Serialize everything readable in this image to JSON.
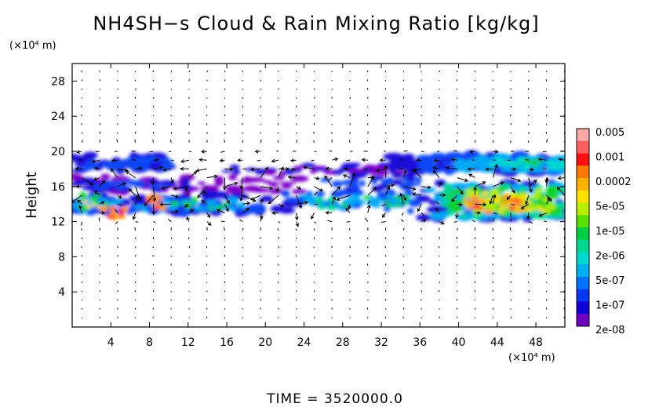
{
  "chart_data": {
    "type": "heatmap",
    "title": "NH4SH−s Cloud & Rain Mixing Ratio [kg/kg]",
    "xlabel": "",
    "ylabel": "Height",
    "x_unit": "(×10⁴ m)",
    "y_unit": "(×10⁴ m)",
    "xlim": [
      0,
      51
    ],
    "ylim": [
      0,
      30
    ],
    "x_ticks": [
      4,
      8,
      12,
      16,
      20,
      24,
      28,
      32,
      36,
      40,
      44,
      48
    ],
    "y_ticks": [
      4,
      8,
      12,
      16,
      20,
      24,
      28
    ],
    "x_tick_labels": [
      "4",
      "8",
      "12",
      "16",
      "20",
      "24",
      "28",
      "32",
      "36",
      "40",
      "44",
      "48"
    ],
    "y_tick_labels": [
      "4",
      "8",
      "12",
      "16",
      "20",
      "24",
      "28"
    ],
    "colorbar": {
      "labels": [
        "0.005",
        "0.001",
        "0.0002",
        "5e-05",
        "1e-05",
        "2e-06",
        "5e-07",
        "1e-07",
        "2e-08"
      ],
      "colors": [
        "#ffa8a8",
        "#ff6060",
        "#ff1010",
        "#ff7a00",
        "#ffb000",
        "#ffe000",
        "#b8f000",
        "#58e000",
        "#00d040",
        "#00d890",
        "#00d8d0",
        "#00b0f0",
        "#0070ff",
        "#0038f0",
        "#1000d8",
        "#7000c0"
      ]
    },
    "cloud_bands": [
      {
        "name": "upper band",
        "x_range": [
          0,
          51
        ],
        "y_range": [
          17.5,
          20
        ]
      },
      {
        "name": "middle band",
        "x_range": [
          0,
          36
        ],
        "y_range": [
          15,
          17.5
        ]
      },
      {
        "name": "lower band",
        "x_range": [
          0,
          51
        ],
        "y_range": [
          12,
          15.5
        ]
      }
    ],
    "max_cores": [
      {
        "x": 4.5,
        "y": 13
      },
      {
        "x": 8.5,
        "y": 14
      },
      {
        "x": 42,
        "y": 14
      },
      {
        "x": 46,
        "y": 14
      }
    ],
    "vector_field": "wind arrows on a regular grid, strongest near heights 12–20"
  },
  "time_label": "TIME = 3520000.0"
}
